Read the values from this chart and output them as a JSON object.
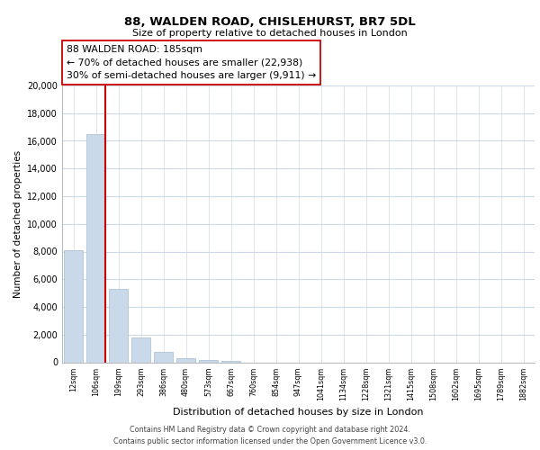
{
  "title": "88, WALDEN ROAD, CHISLEHURST, BR7 5DL",
  "subtitle": "Size of property relative to detached houses in London",
  "xlabel": "Distribution of detached houses by size in London",
  "ylabel": "Number of detached properties",
  "categories": [
    "12sqm",
    "106sqm",
    "199sqm",
    "293sqm",
    "386sqm",
    "480sqm",
    "573sqm",
    "667sqm",
    "760sqm",
    "854sqm",
    "947sqm",
    "1041sqm",
    "1134sqm",
    "1228sqm",
    "1321sqm",
    "1415sqm",
    "1508sqm",
    "1602sqm",
    "1695sqm",
    "1789sqm",
    "1882sqm"
  ],
  "values": [
    8100,
    16500,
    5300,
    1800,
    750,
    300,
    175,
    75,
    0,
    0,
    0,
    0,
    0,
    0,
    0,
    0,
    0,
    0,
    0,
    0,
    0
  ],
  "bar_color": "#c9d9ea",
  "bar_edge_color": "#aec6d8",
  "vline_color": "#cc0000",
  "annotation_title": "88 WALDEN ROAD: 185sqm",
  "annotation_line1": "← 70% of detached houses are smaller (22,938)",
  "annotation_line2": "30% of semi-detached houses are larger (9,911) →",
  "annotation_box_color": "#ffffff",
  "annotation_box_edge": "#cc0000",
  "ylim": [
    0,
    20000
  ],
  "yticks": [
    0,
    2000,
    4000,
    6000,
    8000,
    10000,
    12000,
    14000,
    16000,
    18000,
    20000
  ],
  "footer_line1": "Contains HM Land Registry data © Crown copyright and database right 2024.",
  "footer_line2": "Contains public sector information licensed under the Open Government Licence v3.0.",
  "background_color": "#ffffff",
  "grid_color": "#cdd9e5"
}
